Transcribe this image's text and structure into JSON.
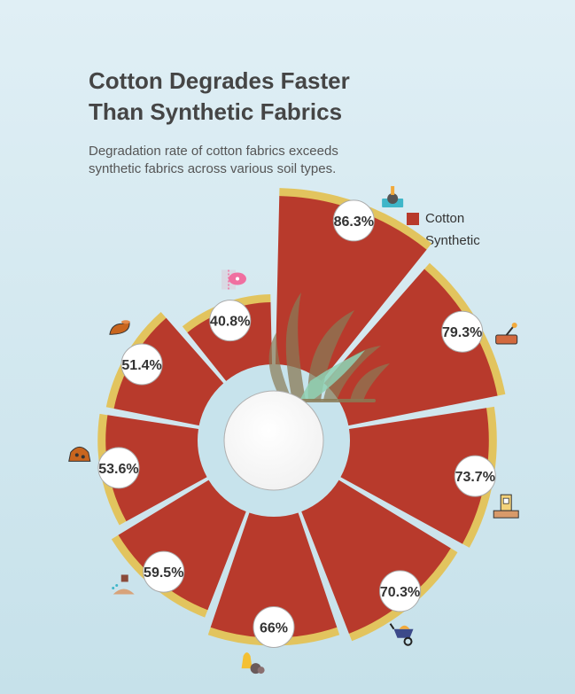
{
  "header": {
    "title_line1": "Cotton Degrades Faster",
    "title_line2": "Than Synthetic Fabrics",
    "subtitle": "Degradation rate of cotton fabrics exceeds synthetic fabrics across various soil types."
  },
  "legend": {
    "items": [
      {
        "label": "Cotton",
        "color": "#b83a2c"
      },
      {
        "label": "Synthetic",
        "color": "#e2c45e"
      }
    ]
  },
  "chart_data": {
    "type": "polar-bar",
    "title": "Cotton Degrades Faster Than Synthetic Fabrics",
    "subtitle": "Degradation rate of cotton fabrics exceeds synthetic fabrics across various soil types.",
    "series": [
      {
        "name": "Cotton",
        "color": "#b83a2c",
        "values": [
          86.3,
          79.3,
          73.7,
          70.3,
          66,
          59.5,
          53.6,
          51.4,
          40.8
        ]
      },
      {
        "name": "Synthetic",
        "color": "#e2c45e"
      }
    ],
    "labels": [
      "86.3%",
      "79.3%",
      "73.7%",
      "70.3%",
      "66%",
      "59.5%",
      "53.6%",
      "51.4%",
      "40.8%"
    ],
    "icons": [
      "planter-icon",
      "soil-tray-icon",
      "brick-building-icon",
      "wheelbarrow-icon",
      "bell-rock-icon",
      "watering-soil-icon",
      "soil-pile-icon",
      "clay-pot-icon",
      "fabric-swatch-icon"
    ],
    "legend_position": "top-right",
    "grid": false
  }
}
